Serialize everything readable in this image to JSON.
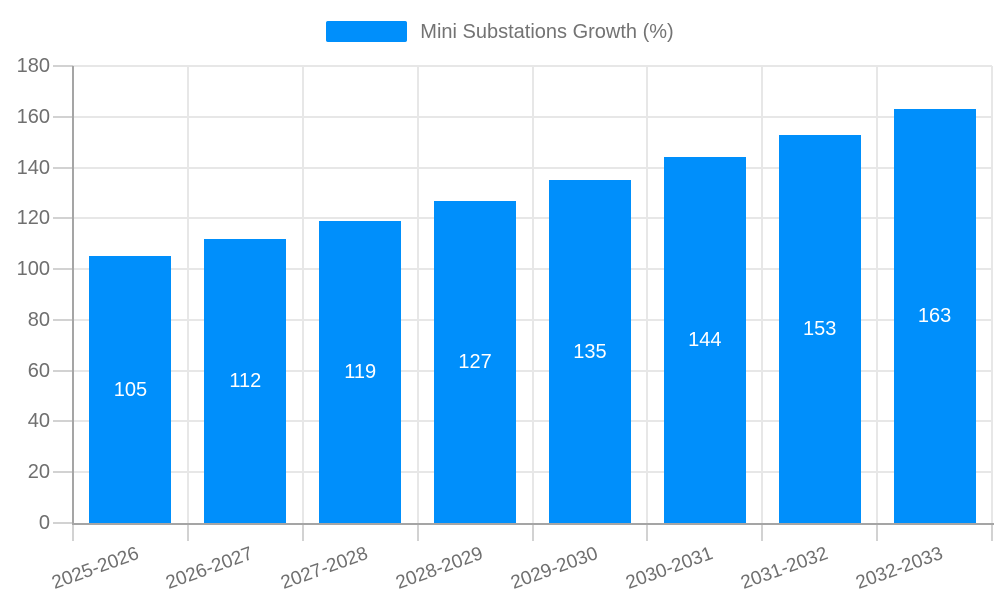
{
  "chart_data": {
    "type": "bar",
    "title": "Mini Substations Growth (%)",
    "categories": [
      "2025-2026",
      "2026-2027",
      "2027-2028",
      "2028-2029",
      "2029-2030",
      "2030-2031",
      "2031-2032",
      "2032-2033"
    ],
    "values": [
      105,
      112,
      119,
      127,
      135,
      144,
      153,
      163
    ],
    "xlabel": "",
    "ylabel": "",
    "ylim": [
      0,
      180
    ],
    "ytick_step": 20,
    "ytick_labels": [
      "0",
      "20",
      "40",
      "60",
      "80",
      "100",
      "120",
      "140",
      "160",
      "180"
    ],
    "grid": true,
    "legend_position": "top",
    "bar_color": "#008ffb",
    "value_label_color": "#ffffff",
    "axis_label_color": "#6f6f6f",
    "legend_text_color": "#737373"
  }
}
